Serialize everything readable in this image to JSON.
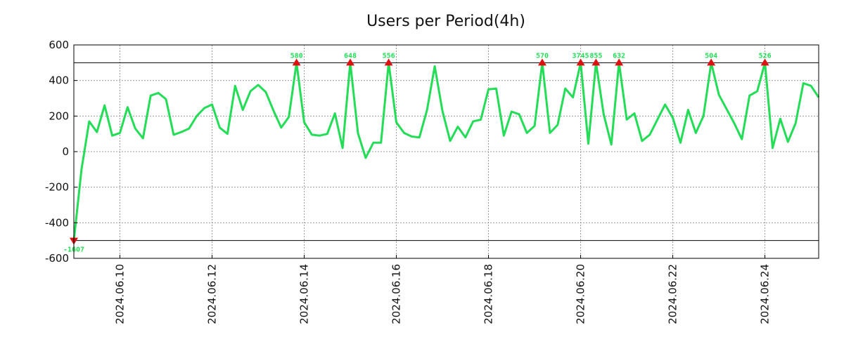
{
  "chart_data": {
    "type": "line",
    "title": "Users per Period(4h)",
    "xlabel": "",
    "ylabel": "",
    "ylim": [
      -600,
      600
    ],
    "xlim": [
      0,
      97
    ],
    "grid": true,
    "yticks": [
      600,
      400,
      200,
      0,
      -200,
      -400,
      -600
    ],
    "ytick_labels": [
      "600",
      "400",
      "200",
      "0",
      "-200",
      "-400",
      "-600"
    ],
    "xticks": [
      {
        "x": 6,
        "label": "2024.06.10"
      },
      {
        "x": 18,
        "label": "2024.06.12"
      },
      {
        "x": 30,
        "label": "2024.06.14"
      },
      {
        "x": 42,
        "label": "2024.06.16"
      },
      {
        "x": 54,
        "label": "2024.06.18"
      },
      {
        "x": 66,
        "label": "2024.06.20"
      },
      {
        "x": 78,
        "label": "2024.06.22"
      },
      {
        "x": 90,
        "label": "2024.06.24"
      }
    ],
    "clip_upper": 500,
    "clip_lower": -500,
    "series": [
      {
        "name": "users",
        "color": "#22dd55",
        "values": [
          -500,
          -100,
          170,
          110,
          260,
          90,
          105,
          250,
          130,
          75,
          315,
          330,
          295,
          95,
          110,
          130,
          200,
          245,
          265,
          135,
          100,
          370,
          235,
          340,
          375,
          335,
          230,
          135,
          195,
          500,
          165,
          95,
          90,
          100,
          215,
          20,
          500,
          105,
          -35,
          50,
          50,
          500,
          165,
          105,
          85,
          80,
          235,
          480,
          230,
          60,
          140,
          80,
          170,
          180,
          350,
          355,
          90,
          225,
          210,
          105,
          145,
          500,
          105,
          150,
          355,
          305,
          500,
          45,
          500,
          210,
          40,
          500,
          180,
          215,
          60,
          95,
          180,
          265,
          190,
          50,
          235,
          105,
          200,
          500,
          320,
          240,
          160,
          70,
          315,
          340,
          500,
          20,
          185,
          55,
          160,
          385,
          370,
          305
        ]
      }
    ],
    "threshold_lines": [
      500,
      -500
    ],
    "annotations": [
      {
        "x": 0,
        "value": -500,
        "label": "-1607",
        "marker": "down"
      },
      {
        "x": 29,
        "value": 500,
        "label": "580",
        "marker": "up"
      },
      {
        "x": 36,
        "value": 500,
        "label": "648",
        "marker": "up"
      },
      {
        "x": 41,
        "value": 500,
        "label": "556",
        "marker": "up"
      },
      {
        "x": 61,
        "value": 500,
        "label": "570",
        "marker": "up"
      },
      {
        "x": 66,
        "value": 500,
        "label": "3745",
        "marker": "up"
      },
      {
        "x": 68,
        "value": 500,
        "label": "855",
        "marker": "up"
      },
      {
        "x": 71,
        "value": 500,
        "label": "632",
        "marker": "up"
      },
      {
        "x": 83,
        "value": 500,
        "label": "504",
        "marker": "up"
      },
      {
        "x": 90,
        "value": 500,
        "label": "526",
        "marker": "up"
      }
    ],
    "annotation_color": "#22dd55",
    "marker_color": "#dd1111"
  }
}
